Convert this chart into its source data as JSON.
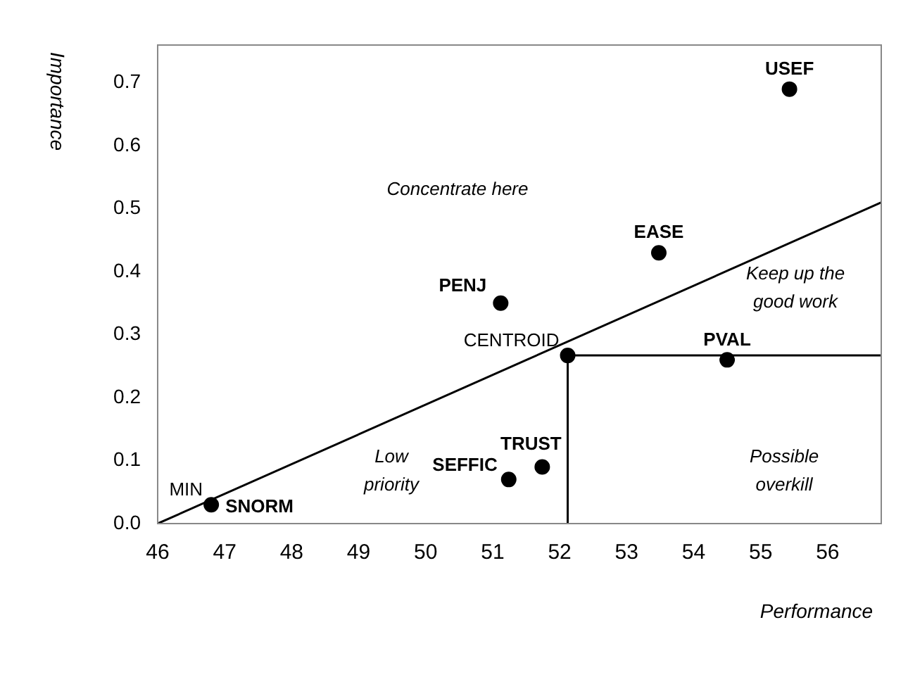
{
  "chart_data": {
    "type": "scatter",
    "xlabel": "Performance",
    "ylabel": "Importance",
    "xlim": [
      46,
      56.8
    ],
    "ylim": [
      0,
      0.76
    ],
    "xticks": [
      46,
      47,
      48,
      49,
      50,
      51,
      52,
      53,
      54,
      55,
      56
    ],
    "yticks": [
      {
        "value": 0,
        "label": "0.0"
      },
      0.1,
      0.2,
      0.3,
      0.4,
      0.5,
      0.6,
      0.7
    ],
    "series": [
      {
        "marker": "circle",
        "color": "#000000",
        "x": [
          55.43,
          53.48,
          51.12,
          52.12,
          54.5,
          51.24,
          51.74,
          46.8
        ],
        "values": [
          0.69,
          0.43,
          0.35,
          0.267,
          0.26,
          0.07,
          0.09,
          0.03
        ]
      },
      {
        "type": "line",
        "marker": "none",
        "color": "#000000",
        "x": [
          46,
          56.8
        ],
        "values": [
          0,
          0.51
        ]
      },
      {
        "type": "line",
        "marker": "none",
        "color": "#000000",
        "x": [
          52.12,
          52.12,
          56.8
        ],
        "values": [
          0,
          0.267,
          0.267
        ]
      }
    ],
    "annotations": [
      {
        "text": "USEF",
        "x": 55.43,
        "y": 0.69
      },
      {
        "text": "EASE",
        "x": 53.48,
        "y": 0.43
      },
      {
        "text": "PENJ",
        "x": 51.12,
        "y": 0.35
      },
      {
        "text": "CENTROID",
        "x": 52.12,
        "y": 0.267
      },
      {
        "text": "PVAL",
        "x": 54.5,
        "y": 0.26
      },
      {
        "text": "SEFFIC",
        "x": 51.24,
        "y": 0.07
      },
      {
        "text": "TRUST",
        "x": 51.74,
        "y": 0.09
      },
      {
        "text": "MIN",
        "x": 46.8,
        "y": 0.03
      },
      {
        "text": "SNORM",
        "x": 46.8,
        "y": 0.03
      },
      "Concentrate here",
      "Keep up the\ngood work",
      "Low\npriority",
      "Possible\noverkill"
    ]
  }
}
